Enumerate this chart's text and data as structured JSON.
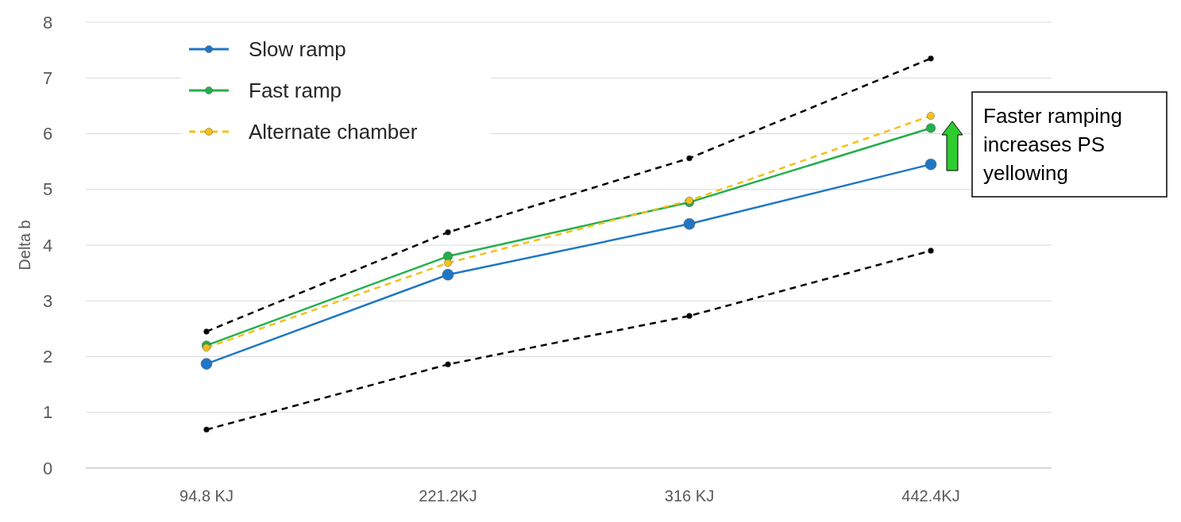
{
  "chart_data": {
    "type": "line",
    "ylabel": "Delta b",
    "categories": [
      "94.8 KJ",
      "221.2KJ",
      "316 KJ",
      "442.4KJ"
    ],
    "series": [
      {
        "name": "Slow ramp",
        "color": "#1f77c4",
        "values": [
          1.87,
          3.47,
          4.38,
          5.45
        ],
        "line_style": "solid"
      },
      {
        "name": "Fast ramp",
        "color": "#22b04b",
        "values": [
          2.2,
          3.8,
          4.77,
          6.1
        ],
        "line_style": "solid"
      },
      {
        "name": "Alternate chamber",
        "color": "#f5c01a",
        "values": [
          2.16,
          3.68,
          4.8,
          6.32
        ],
        "line_style": "dashed"
      },
      {
        "color": "#000000",
        "values": [
          2.45,
          4.23,
          5.56,
          7.35
        ],
        "line_style": "dashed"
      },
      {
        "color": "#000000",
        "values": [
          0.69,
          1.86,
          2.73,
          3.9
        ],
        "line_style": "dashed"
      }
    ],
    "ylim": [
      0,
      8
    ],
    "yticks": [
      0,
      1,
      2,
      3,
      4,
      5,
      6,
      7,
      8
    ],
    "grid": "y",
    "legend": "top left",
    "marker": "circle",
    "annotations": [
      "Faster ramping increases PS yellowing"
    ]
  }
}
